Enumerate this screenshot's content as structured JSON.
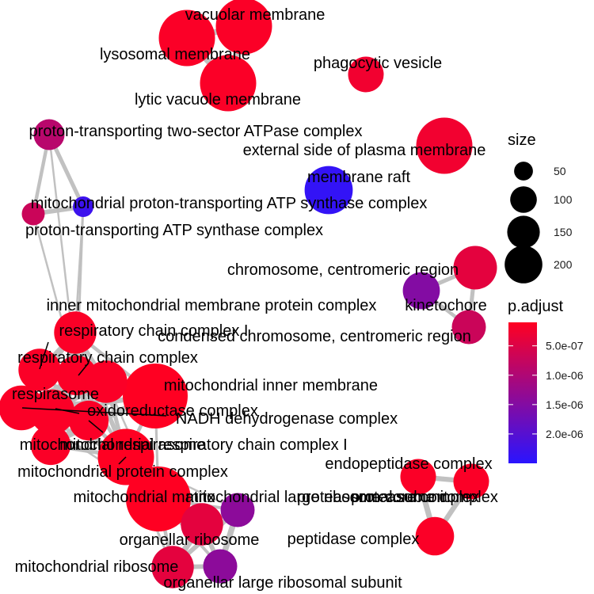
{
  "chart_data": {
    "type": "network",
    "nodes": [
      {
        "id": "vacuolar-membrane",
        "label": "vacuolar membrane",
        "size": 150,
        "p_adjust": 1.5e-07
      },
      {
        "id": "lysosomal-membrane",
        "label": "lysosomal membrane",
        "size": 150,
        "p_adjust": 1.5e-07
      },
      {
        "id": "lytic-vacuole-membrane",
        "label": "lytic vacuole membrane",
        "size": 150,
        "p_adjust": 1.5e-07
      },
      {
        "id": "phagocytic-vesicle",
        "label": "phagocytic vesicle",
        "size": 60,
        "p_adjust": 2.5e-07
      },
      {
        "id": "external-side-plasma-membrane",
        "label": "external side of plasma membrane",
        "size": 150,
        "p_adjust": 2.5e-07
      },
      {
        "id": "membrane-raft",
        "label": "membrane raft",
        "size": 110,
        "p_adjust": 2.4e-06
      },
      {
        "id": "proton-transporting-two-sector-atpase-complex",
        "label": "proton-transporting two-sector ATPase complex",
        "size": 45,
        "p_adjust": 9e-07
      },
      {
        "id": "mitochondrial-proton-transporting-atp-synthase-complex",
        "label": "mitochondrial proton-transporting ATP synthase complex",
        "size": 20,
        "p_adjust": 2.3e-06
      },
      {
        "id": "proton-transporting-atp-synthase-complex",
        "label": "proton-transporting ATP synthase complex",
        "size": 25,
        "p_adjust": 7e-07
      },
      {
        "id": "chromosome-centromeric-region",
        "label": "chromosome, centromeric region",
        "size": 90,
        "p_adjust": 4e-07
      },
      {
        "id": "kinetochore",
        "label": "kinetochore",
        "size": 65,
        "p_adjust": 1.5e-06
      },
      {
        "id": "condensed-chromosome-centromeric-region",
        "label": "condensed chromosome, centromeric region",
        "size": 55,
        "p_adjust": 7e-07
      },
      {
        "id": "inner-mitochondrial-membrane-protein-complex",
        "label": "inner mitochondrial membrane protein complex",
        "size": 85,
        "p_adjust": 1.5e-07
      },
      {
        "id": "respiratory-chain-complex-i",
        "label": "respiratory chain complex I",
        "size": 75,
        "p_adjust": 1.5e-07
      },
      {
        "id": "respiratory-chain-complex",
        "label": "respiratory chain complex",
        "size": 85,
        "p_adjust": 1.5e-07
      },
      {
        "id": "respirasome",
        "label": "respirasome",
        "size": 95,
        "p_adjust": 1.5e-07
      },
      {
        "id": "mitochondrial-inner-membrane",
        "label": "mitochondrial inner membrane",
        "size": 200,
        "p_adjust": 1e-07
      },
      {
        "id": "oxidoreductase-complex",
        "label": "oxidoreductase complex",
        "size": 95,
        "p_adjust": 1.5e-07
      },
      {
        "id": "nadh-dehydrogenase-complex",
        "label": "NADH dehydrogenase complex",
        "size": 75,
        "p_adjust": 1.5e-07
      },
      {
        "id": "mitochondrial-respirasome",
        "label": "mitochondrial respirasome",
        "size": 85,
        "p_adjust": 1.5e-07
      },
      {
        "id": "mitochondrial-respiratory-chain-complex-i",
        "label": "mitochondrial respiratory chain complex I",
        "size": 75,
        "p_adjust": 1.5e-07
      },
      {
        "id": "mitochondrial-protein-complex",
        "label": "mitochondrial protein complex",
        "size": 150,
        "p_adjust": 1e-07
      },
      {
        "id": "mitochondrial-matrix",
        "label": "mitochondrial matrix",
        "size": 200,
        "p_adjust": 1e-07
      },
      {
        "id": "mitochondrial-large-ribosomal-subunit",
        "label": "mitochondrial large ribosomal subunit",
        "size": 55,
        "p_adjust": 1.4e-06
      },
      {
        "id": "organellar-ribosome",
        "label": "organellar ribosome",
        "size": 85,
        "p_adjust": 4e-07
      },
      {
        "id": "mitochondrial-ribosome",
        "label": "mitochondrial ribosome",
        "size": 85,
        "p_adjust": 4e-07
      },
      {
        "id": "organellar-large-ribosomal-subunit",
        "label": "organellar large ribosomal subunit",
        "size": 55,
        "p_adjust": 1.4e-06
      },
      {
        "id": "endopeptidase-complex",
        "label": "endopeptidase complex",
        "size": 60,
        "p_adjust": 1.5e-07
      },
      {
        "id": "proteasome-complex",
        "label": "proteasome complex",
        "size": 60,
        "p_adjust": 1.5e-07
      },
      {
        "id": "peptidase-complex",
        "label": "peptidase complex",
        "size": 70,
        "p_adjust": 1.5e-07
      },
      {
        "id": "proteasome-core-complex",
        "label": "proteasome core complex",
        "size": 60,
        "p_adjust": 1.5e-07
      }
    ],
    "edges": [
      {
        "source": "vacuolar-membrane",
        "target": "lysosomal-membrane",
        "weight": 0.95
      },
      {
        "source": "vacuolar-membrane",
        "target": "lytic-vacuole-membrane",
        "weight": 0.95
      },
      {
        "source": "lysosomal-membrane",
        "target": "lytic-vacuole-membrane",
        "weight": 0.95
      },
      {
        "source": "proton-transporting-two-sector-atpase-complex",
        "target": "mitochondrial-proton-transporting-atp-synthase-complex",
        "weight": 0.6
      },
      {
        "source": "proton-transporting-two-sector-atpase-complex",
        "target": "proton-transporting-atp-synthase-complex",
        "weight": 0.5
      },
      {
        "source": "mitochondrial-proton-transporting-atp-synthase-complex",
        "target": "proton-transporting-atp-synthase-complex",
        "weight": 0.7
      },
      {
        "source": "proton-transporting-two-sector-atpase-complex",
        "target": "respiratory-chain-complex-i",
        "weight": 0.2
      },
      {
        "source": "mitochondrial-proton-transporting-atp-synthase-complex",
        "target": "respiratory-chain-complex-i",
        "weight": 0.25
      },
      {
        "source": "proton-transporting-atp-synthase-complex",
        "target": "respiratory-chain-complex-i",
        "weight": 0.2
      },
      {
        "source": "mitochondrial-proton-transporting-atp-synthase-complex",
        "target": "inner-mitochondrial-membrane-protein-complex",
        "weight": 0.2
      },
      {
        "source": "chromosome-centromeric-region",
        "target": "kinetochore",
        "weight": 0.6
      },
      {
        "source": "chromosome-centromeric-region",
        "target": "condensed-chromosome-centromeric-region",
        "weight": 0.6
      },
      {
        "source": "kinetochore",
        "target": "condensed-chromosome-centromeric-region",
        "weight": 0.5
      },
      {
        "source": "respiratory-chain-complex-i",
        "target": "respiratory-chain-complex",
        "weight": 0.6
      },
      {
        "source": "respiratory-chain-complex-i",
        "target": "inner-mitochondrial-membrane-protein-complex",
        "weight": 0.6
      },
      {
        "source": "respiratory-chain-complex-i",
        "target": "respirasome",
        "weight": 0.5
      },
      {
        "source": "respiratory-chain-complex-i",
        "target": "mitochondrial-inner-membrane",
        "weight": 0.4
      },
      {
        "source": "respiratory-chain-complex-i",
        "target": "oxidoreductase-complex",
        "weight": 0.6
      },
      {
        "source": "respiratory-chain-complex-i",
        "target": "nadh-dehydrogenase-complex",
        "weight": 0.7
      },
      {
        "source": "respiratory-chain-complex-i",
        "target": "mitochondrial-respirasome",
        "weight": 0.5
      },
      {
        "source": "respiratory-chain-complex-i",
        "target": "mitochondrial-respiratory-chain-complex-i",
        "weight": 0.8
      },
      {
        "source": "respiratory-chain-complex-i",
        "target": "mitochondrial-protein-complex",
        "weight": 0.5
      },
      {
        "source": "respiratory-chain-complex",
        "target": "inner-mitochondrial-membrane-protein-complex",
        "weight": 0.6
      },
      {
        "source": "respiratory-chain-complex",
        "target": "respirasome",
        "weight": 0.8
      },
      {
        "source": "respiratory-chain-complex",
        "target": "mitochondrial-inner-membrane",
        "weight": 0.4
      },
      {
        "source": "respiratory-chain-complex",
        "target": "oxidoreductase-complex",
        "weight": 0.6
      },
      {
        "source": "respiratory-chain-complex",
        "target": "mitochondrial-respirasome",
        "weight": 0.8
      },
      {
        "source": "respiratory-chain-complex",
        "target": "mitochondrial-protein-complex",
        "weight": 0.5
      },
      {
        "source": "respirasome",
        "target": "mitochondrial-respirasome",
        "weight": 0.9
      },
      {
        "source": "respirasome",
        "target": "oxidoreductase-complex",
        "weight": 0.6
      },
      {
        "source": "respirasome",
        "target": "inner-mitochondrial-membrane-protein-complex",
        "weight": 0.5
      },
      {
        "source": "respirasome",
        "target": "mitochondrial-inner-membrane",
        "weight": 0.4
      },
      {
        "source": "respirasome",
        "target": "nadh-dehydrogenase-complex",
        "weight": 0.5
      },
      {
        "source": "respirasome",
        "target": "mitochondrial-protein-complex",
        "weight": 0.5
      },
      {
        "source": "inner-mitochondrial-membrane-protein-complex",
        "target": "mitochondrial-inner-membrane",
        "weight": 0.5
      },
      {
        "source": "inner-mitochondrial-membrane-protein-complex",
        "target": "mitochondrial-protein-complex",
        "weight": 0.7
      },
      {
        "source": "inner-mitochondrial-membrane-protein-complex",
        "target": "oxidoreductase-complex",
        "weight": 0.5
      },
      {
        "source": "inner-mitochondrial-membrane-protein-complex",
        "target": "nadh-dehydrogenase-complex",
        "weight": 0.5
      },
      {
        "source": "inner-mitochondrial-membrane-protein-complex",
        "target": "mitochondrial-respirasome",
        "weight": 0.5
      },
      {
        "source": "inner-mitochondrial-membrane-protein-complex",
        "target": "mitochondrial-respiratory-chain-complex-i",
        "weight": 0.5
      },
      {
        "source": "mitochondrial-inner-membrane",
        "target": "oxidoreductase-complex",
        "weight": 0.4
      },
      {
        "source": "mitochondrial-inner-membrane",
        "target": "nadh-dehydrogenase-complex",
        "weight": 0.4
      },
      {
        "source": "mitochondrial-inner-membrane",
        "target": "mitochondrial-respirasome",
        "weight": 0.4
      },
      {
        "source": "mitochondrial-inner-membrane",
        "target": "mitochondrial-protein-complex",
        "weight": 0.5
      },
      {
        "source": "mitochondrial-inner-membrane",
        "target": "mitochondrial-matrix",
        "weight": 0.3
      },
      {
        "source": "mitochondrial-inner-membrane",
        "target": "mitochondrial-respiratory-chain-complex-i",
        "weight": 0.4
      },
      {
        "source": "oxidoreductase-complex",
        "target": "nadh-dehydrogenase-complex",
        "weight": 0.6
      },
      {
        "source": "oxidoreductase-complex",
        "target": "mitochondrial-respirasome",
        "weight": 0.6
      },
      {
        "source": "oxidoreductase-complex",
        "target": "mitochondrial-respiratory-chain-complex-i",
        "weight": 0.6
      },
      {
        "source": "oxidoreductase-complex",
        "target": "mitochondrial-protein-complex",
        "weight": 0.5
      },
      {
        "source": "nadh-dehydrogenase-complex",
        "target": "mitochondrial-respiratory-chain-complex-i",
        "weight": 0.9
      },
      {
        "source": "nadh-dehydrogenase-complex",
        "target": "mitochondrial-respirasome",
        "weight": 0.5
      },
      {
        "source": "nadh-dehydrogenase-complex",
        "target": "mitochondrial-protein-complex",
        "weight": 0.5
      },
      {
        "source": "mitochondrial-respirasome",
        "target": "mitochondrial-respiratory-chain-complex-i",
        "weight": 0.6
      },
      {
        "source": "mitochondrial-respirasome",
        "target": "mitochondrial-protein-complex",
        "weight": 0.6
      },
      {
        "source": "mitochondrial-respiratory-chain-complex-i",
        "target": "mitochondrial-protein-complex",
        "weight": 0.6
      },
      {
        "source": "mitochondrial-protein-complex",
        "target": "mitochondrial-matrix",
        "weight": 0.4
      },
      {
        "source": "mitochondrial-protein-complex",
        "target": "organellar-ribosome",
        "weight": 0.3
      },
      {
        "source": "mitochondrial-protein-complex",
        "target": "mitochondrial-ribosome",
        "weight": 0.3
      },
      {
        "source": "mitochondrial-protein-complex",
        "target": "mitochondrial-large-ribosomal-subunit",
        "weight": 0.2
      },
      {
        "source": "mitochondrial-respirasome",
        "target": "mitochondrial-matrix",
        "weight": 0.2
      },
      {
        "source": "respirasome",
        "target": "mitochondrial-matrix",
        "weight": 0.2
      },
      {
        "source": "mitochondrial-matrix",
        "target": "organellar-ribosome",
        "weight": 0.5
      },
      {
        "source": "mitochondrial-matrix",
        "target": "mitochondrial-ribosome",
        "weight": 0.5
      },
      {
        "source": "mitochondrial-matrix",
        "target": "mitochondrial-large-ribosomal-subunit",
        "weight": 0.4
      },
      {
        "source": "mitochondrial-matrix",
        "target": "organellar-large-ribosomal-subunit",
        "weight": 0.4
      },
      {
        "source": "organellar-ribosome",
        "target": "mitochondrial-ribosome",
        "weight": 0.95
      },
      {
        "source": "organellar-ribosome",
        "target": "mitochondrial-large-ribosomal-subunit",
        "weight": 0.7
      },
      {
        "source": "organellar-ribosome",
        "target": "organellar-large-ribosomal-subunit",
        "weight": 0.7
      },
      {
        "source": "mitochondrial-ribosome",
        "target": "organellar-large-ribosomal-subunit",
        "weight": 0.7
      },
      {
        "source": "mitochondrial-ribosome",
        "target": "mitochondrial-large-ribosomal-subunit",
        "weight": 0.7
      },
      {
        "source": "mitochondrial-large-ribosomal-subunit",
        "target": "organellar-large-ribosomal-subunit",
        "weight": 0.95
      },
      {
        "source": "endopeptidase-complex",
        "target": "proteasome-complex",
        "weight": 0.8
      },
      {
        "source": "endopeptidase-complex",
        "target": "peptidase-complex",
        "weight": 0.9
      },
      {
        "source": "proteasome-complex",
        "target": "peptidase-complex",
        "weight": 0.8
      },
      {
        "source": "endopeptidase-complex",
        "target": "proteasome-core-complex",
        "weight": 0.6
      },
      {
        "source": "proteasome-complex",
        "target": "proteasome-core-complex",
        "weight": 0.6
      },
      {
        "source": "peptidase-complex",
        "target": "proteasome-core-complex",
        "weight": 0.6
      }
    ],
    "size_legend": {
      "title": "size",
      "values": [
        50,
        100,
        150,
        200
      ]
    },
    "color_legend": {
      "title": "p.adjust",
      "low_color": "#FF0022",
      "high_color": "#2A14FF",
      "min": 1e-07,
      "max": 2.5e-06,
      "ticks": [
        {
          "value": 5e-07,
          "label": "5.0e-07"
        },
        {
          "value": 1e-06,
          "label": "1.0e-06"
        },
        {
          "value": 1.5e-06,
          "label": "1.5e-06"
        },
        {
          "value": 2e-06,
          "label": "2.0e-06"
        }
      ]
    }
  }
}
